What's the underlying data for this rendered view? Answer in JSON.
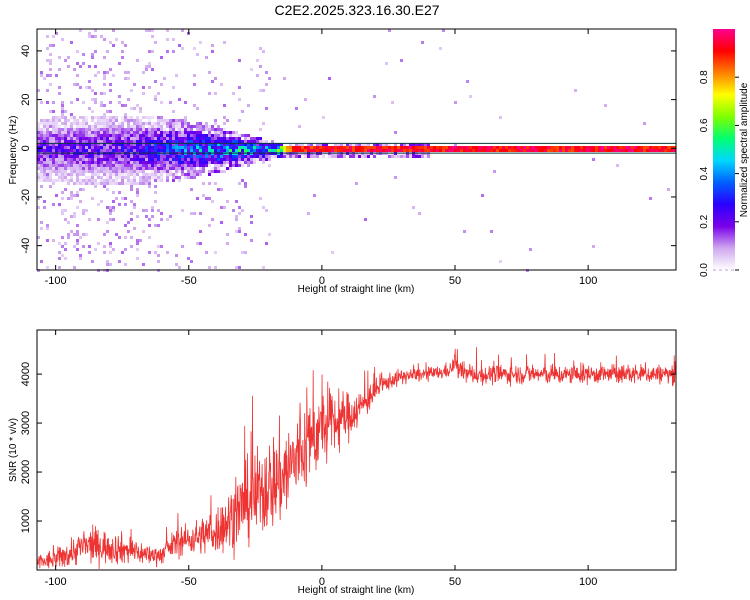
{
  "title": "C2E2.2025.323.16.30.E27",
  "chart_data": [
    {
      "type": "heatmap",
      "name": "spectrogram",
      "xlabel": "Height of straight line (km)",
      "ylabel": "Frequency (Hz)",
      "xlim": [
        -107,
        133
      ],
      "ylim": [
        -50,
        49
      ],
      "xticks": [
        -100,
        -50,
        0,
        50,
        100
      ],
      "yticks": [
        -40,
        -20,
        0,
        20,
        40
      ],
      "colorbar": {
        "label": "Normalized spectral amplitude",
        "range": [
          0.0,
          1.0
        ],
        "ticks": [
          0.0,
          0.2,
          0.4,
          0.6,
          0.8
        ],
        "colors": [
          "#ffffff",
          "#cfa7f0",
          "#7a00e8",
          "#2a00ff",
          "#0060ff",
          "#00d8ff",
          "#00ff70",
          "#7fff00",
          "#ffff00",
          "#ff8000",
          "#ff0000",
          "#ff0090"
        ]
      },
      "band_profile": {
        "x_km": [
          -107,
          -90,
          -70,
          -55,
          -40,
          -30,
          -20,
          -15,
          -10,
          0,
          10,
          133
        ],
        "half_width_hz": [
          8,
          9,
          9,
          8,
          6,
          4,
          2.5,
          1.8,
          1.5,
          1.2,
          1.2,
          1.2
        ],
        "peak_amplitude": [
          0.25,
          0.25,
          0.28,
          0.4,
          0.5,
          0.55,
          0.6,
          0.8,
          0.95,
          1.0,
          1.0,
          1.0
        ]
      },
      "annotations": [
        "Horizontal dark band lines at approx +2 Hz and -2 Hz"
      ]
    },
    {
      "type": "line",
      "name": "snr",
      "xlabel": "Height of straight line (km)",
      "ylabel": "SNR (10 * v/v)",
      "xlim": [
        -107,
        133
      ],
      "ylim": [
        0,
        4900
      ],
      "xticks": [
        -100,
        -50,
        0,
        50,
        100
      ],
      "yticks": [
        1000,
        2000,
        3000,
        4000
      ],
      "color": "#ee3333",
      "series": [
        {
          "name": "SNR",
          "x": [
            -107,
            -100,
            -95,
            -90,
            -85,
            -80,
            -75,
            -70,
            -65,
            -60,
            -55,
            -50,
            -45,
            -40,
            -35,
            -30,
            -25,
            -20,
            -15,
            -10,
            -5,
            0,
            5,
            10,
            15,
            20,
            25,
            30,
            35,
            40,
            45,
            49,
            50,
            51,
            55,
            60,
            70,
            80,
            90,
            100,
            110,
            120,
            133
          ],
          "mean": [
            150,
            220,
            330,
            480,
            500,
            470,
            430,
            380,
            300,
            320,
            560,
            620,
            700,
            800,
            1000,
            1300,
            1500,
            1750,
            1900,
            2250,
            2600,
            2900,
            3000,
            3150,
            3350,
            3650,
            3850,
            3950,
            3980,
            4000,
            4030,
            4120,
            4300,
            4100,
            4000,
            3980,
            4000,
            4000,
            3980,
            4000,
            4000,
            4000,
            4000
          ],
          "spread": [
            250,
            300,
            400,
            500,
            520,
            480,
            450,
            400,
            280,
            280,
            400,
            450,
            550,
            700,
            900,
            1100,
            1300,
            1400,
            1500,
            1400,
            1300,
            1100,
            900,
            700,
            500,
            350,
            250,
            220,
            200,
            200,
            200,
            250,
            300,
            280,
            280,
            280,
            280,
            280,
            280,
            280,
            280,
            280,
            280
          ]
        }
      ]
    }
  ]
}
